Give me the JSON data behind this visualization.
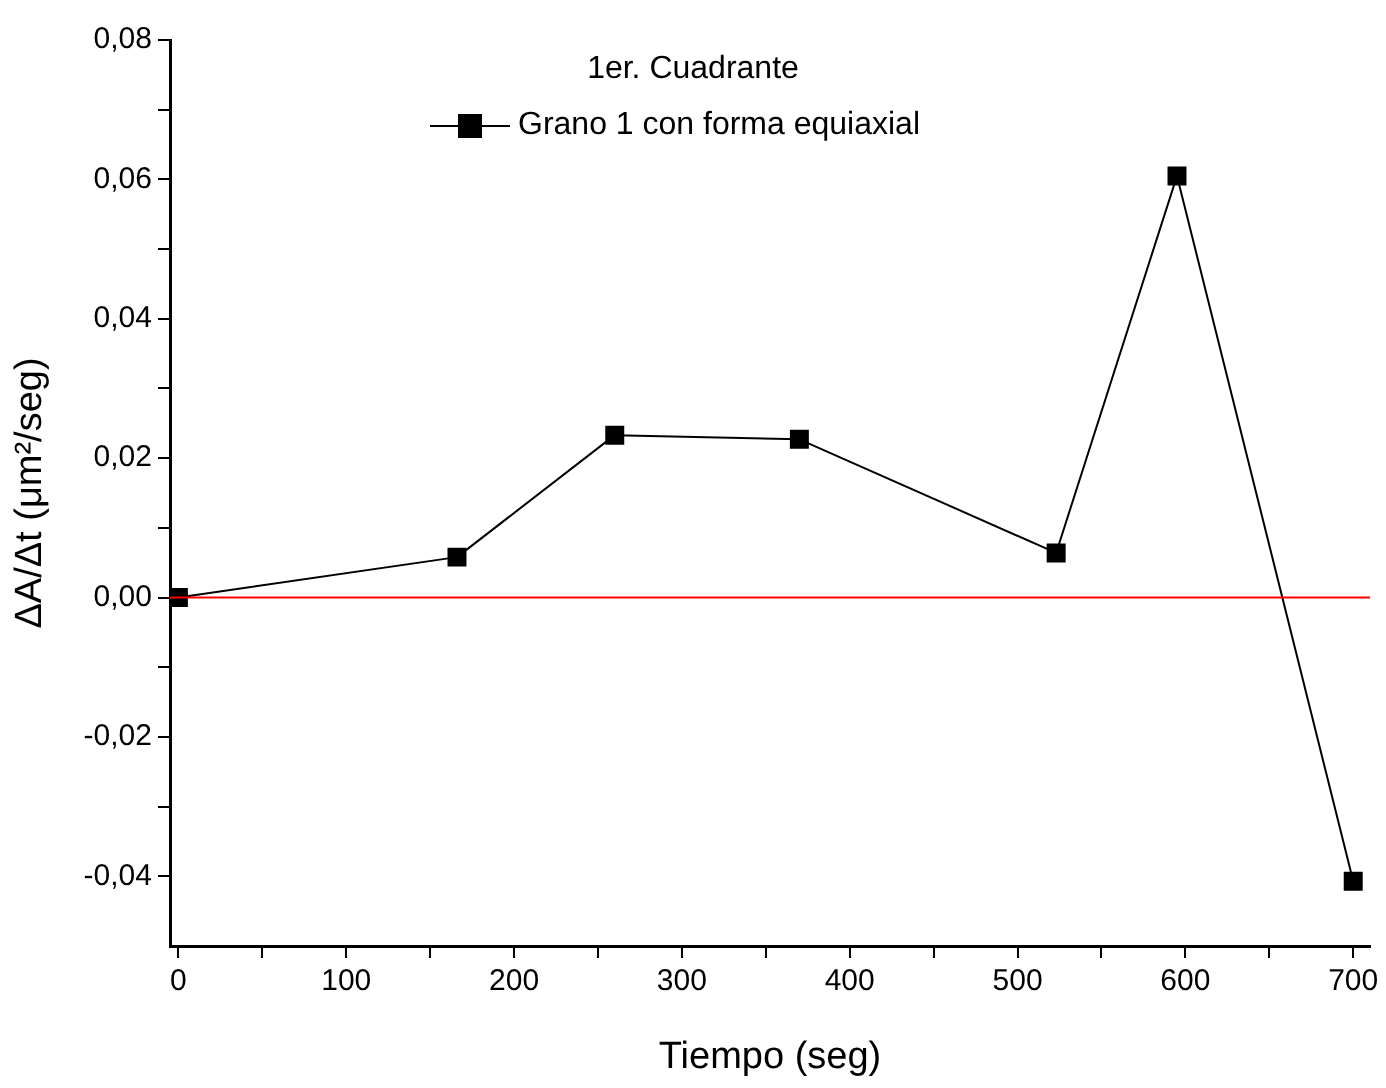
{
  "chart_data": {
    "type": "line",
    "xlabel": "Tiempo (seg)",
    "ylabel": "ΔA/Δt (μm²/seg)",
    "legend_title": "1er. Cuadrante",
    "legend": "top",
    "marker": "square",
    "line_style": "solid",
    "xlim": [
      -5,
      710
    ],
    "ylim": [
      -0.05,
      0.08
    ],
    "xticks": [
      0,
      {
        "value": 50,
        "label": null
      },
      100,
      {
        "value": 150,
        "label": null
      },
      200,
      {
        "value": 250,
        "label": null
      },
      300,
      {
        "value": 350,
        "label": null
      },
      400,
      {
        "value": 450,
        "label": null
      },
      500,
      {
        "value": 550,
        "label": null
      },
      600,
      {
        "value": 650,
        "label": null
      },
      700
    ],
    "yticks": [
      {
        "value": -0.04,
        "label": "-0,04"
      },
      {
        "value": -0.03,
        "label": null
      },
      {
        "value": -0.02,
        "label": "-0,02"
      },
      {
        "value": -0.01,
        "label": null
      },
      {
        "value": 0,
        "label": "0,00"
      },
      {
        "value": 0.01,
        "label": null
      },
      {
        "value": 0.02,
        "label": "0,02"
      },
      {
        "value": 0.03,
        "label": null
      },
      {
        "value": 0.04,
        "label": "0,04"
      },
      {
        "value": 0.05,
        "label": null
      },
      {
        "value": 0.06,
        "label": "0,06"
      },
      {
        "value": 0.07,
        "label": null
      },
      {
        "value": 0.08,
        "label": "0,08"
      }
    ],
    "ref_lines": [
      {
        "axis": "y",
        "value": 0,
        "color": "#ff0000"
      }
    ],
    "x": [
      0,
      166,
      260,
      370,
      523,
      595,
      700
    ],
    "series": [
      {
        "name": "Grano 1 con forma equiaxial",
        "color": "#000000",
        "values": [
          0,
          0.0058,
          0.0233,
          0.0227,
          0.0064,
          0.0605,
          -0.0407
        ]
      }
    ]
  }
}
